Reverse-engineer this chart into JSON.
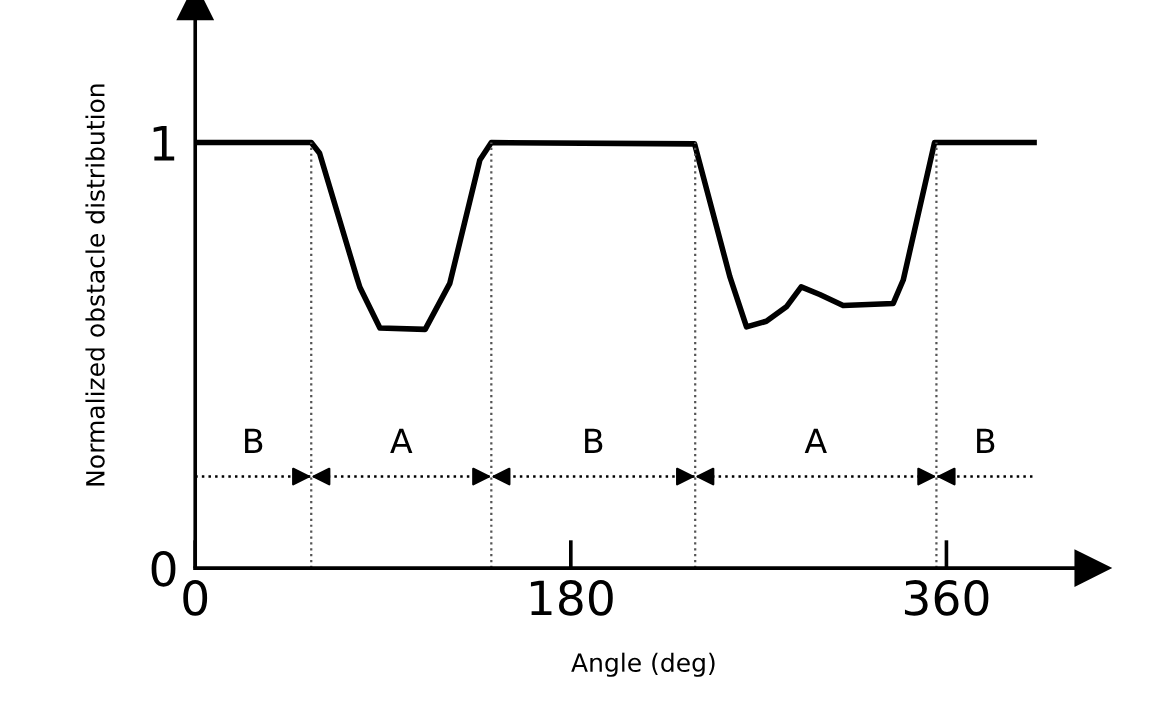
{
  "chart_data": {
    "type": "line",
    "xlabel": "Angle (deg)",
    "ylabel": "Normalized obstacle distribution",
    "x": [
      0,
      55.6,
      59.6,
      77.3,
      78.9,
      88.5,
      110.2,
      122,
      136.4,
      141.9,
      239.3,
      256.2,
      264.2,
      273.7,
      283.3,
      290.4,
      299.3,
      310.5,
      334.5,
      339.3,
      354.3,
      402
    ],
    "series": [
      {
        "color": "#000000",
        "values": [
          1,
          1,
          0.975,
          0.685,
          0.66,
          0.564,
          0.561,
          0.669,
          0.959,
          1,
          0.997,
          0.685,
          0.567,
          0.58,
          0.614,
          0.661,
          0.643,
          0.617,
          0.622,
          0.677,
          1,
          1
        ]
      }
    ],
    "xlim": [
      0,
      430
    ],
    "ylim": [
      0,
      1.33
    ],
    "xticks": [
      0,
      180,
      360
    ],
    "yticks": [
      0,
      1
    ],
    "grid": false,
    "marker": "none",
    "line_style": "solid",
    "ref_lines": [
      {
        "axis": "x",
        "value": 55.6,
        "color": "#555555",
        "line_style": "dotted"
      },
      {
        "axis": "x",
        "value": 141.9,
        "color": "#555555",
        "line_style": "dotted"
      },
      {
        "axis": "x",
        "value": 239.6,
        "color": "#555555",
        "line_style": "dotted"
      },
      {
        "axis": "x",
        "value": 355.2,
        "color": "#555555",
        "line_style": "dotted"
      },
      {
        "axis": "y",
        "value": 0.215,
        "color": "#000000",
        "line_style": "dotted"
      }
    ],
    "annotations": [
      "B",
      "A",
      "B",
      "A",
      "B"
    ]
  }
}
